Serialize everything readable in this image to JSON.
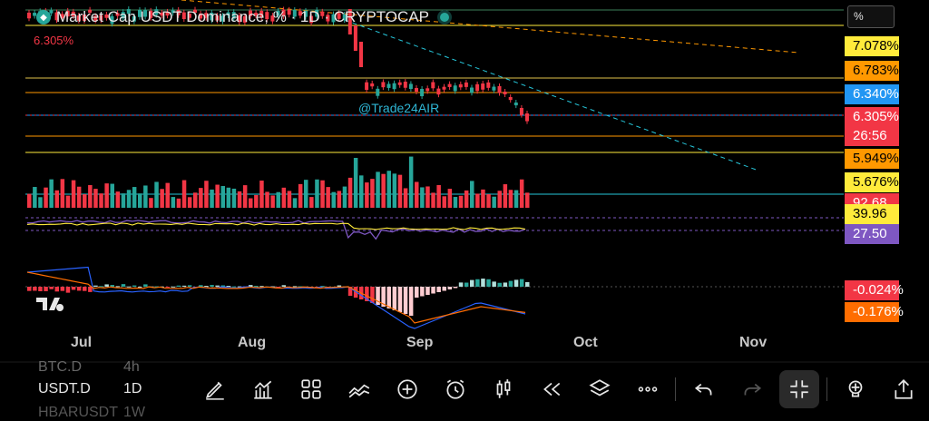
{
  "header": {
    "title": "Market Cap USDT Dominance, %  · 1D · CRYPTOCAP",
    "last_value": "6.305%"
  },
  "watermark": "@Trade24AIR",
  "scale_mode": "%",
  "price_labels": [
    {
      "text": "7.078%",
      "bg": "#ffeb3b",
      "fg": "#000000"
    },
    {
      "text": "6.783%",
      "bg": "#ff9800",
      "fg": "#000000"
    },
    {
      "text": "6.340%",
      "bg": "#2196f3",
      "fg": "#ffffff"
    },
    {
      "text": "6.305%",
      "bg": "#f23645",
      "fg": "#ffffff"
    },
    {
      "text": "26:56",
      "bg": "#f23645",
      "fg": "#ffffff"
    },
    {
      "text": "5.949%",
      "bg": "#ff9800",
      "fg": "#000000"
    },
    {
      "text": "5.676%",
      "bg": "#ffeb3b",
      "fg": "#000000"
    },
    {
      "text": "92.68 B",
      "bg": "#f23645",
      "fg": "#ffffff"
    },
    {
      "text": "39.96",
      "bg": "#ffeb3b",
      "fg": "#000000"
    },
    {
      "text": "27.50",
      "bg": "#7e57c2",
      "fg": "#ffffff"
    },
    {
      "text": "-0.024%",
      "bg": "#f23645",
      "fg": "#ffffff"
    },
    {
      "text": "-0.176%",
      "bg": "#ff6d00",
      "fg": "#ffffff"
    }
  ],
  "time_axis": [
    "Jul",
    "Aug",
    "Sep",
    "Oct",
    "Nov"
  ],
  "watchlist": [
    {
      "symbol": "BTC.D",
      "interval": "4h"
    },
    {
      "symbol": "USDT.D",
      "interval": "1D"
    },
    {
      "symbol": "HBARUSDT",
      "interval": "1W"
    }
  ],
  "toolbar": [
    {
      "name": "draw-tool-icon"
    },
    {
      "name": "indicators-icon"
    },
    {
      "name": "templates-icon"
    },
    {
      "name": "compare-icon"
    },
    {
      "name": "add-icon"
    },
    {
      "name": "alert-icon"
    },
    {
      "name": "chart-type-icon"
    },
    {
      "name": "replay-icon"
    },
    {
      "name": "layers-icon"
    },
    {
      "name": "more-icon"
    },
    {
      "name": "undo-icon"
    },
    {
      "name": "redo-icon"
    },
    {
      "name": "fullscreen-exit-icon"
    },
    {
      "name": "ideas-icon"
    },
    {
      "name": "share-icon"
    }
  ],
  "colors": {
    "up": "#26a69a",
    "down": "#f23645",
    "trend": "#26c6da"
  }
}
